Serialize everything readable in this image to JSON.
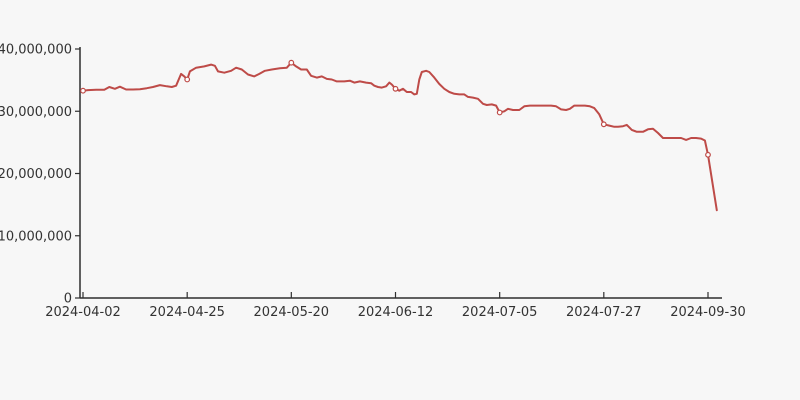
{
  "chart_data": {
    "type": "line",
    "title": "",
    "background_color": "#f7f7f7",
    "axis_color": "#2f2f2f",
    "label_color": "#333333",
    "line_color": "#be4b48",
    "marker_fill": "#ffffff",
    "grid": "off",
    "legend": "none",
    "ylim": [
      0,
      40000000
    ],
    "y_ticks": [
      {
        "v": 0,
        "label": "0"
      },
      {
        "v": 10000000,
        "label": "10,000,000"
      },
      {
        "v": 20000000,
        "label": "20,000,000"
      },
      {
        "v": 30000000,
        "label": "30,000,000"
      },
      {
        "v": 40000000,
        "label": "40,000,000"
      }
    ],
    "x_ticks": [
      {
        "f": 0.0,
        "label": "2024-04-02"
      },
      {
        "f": 0.1667,
        "label": "2024-04-25"
      },
      {
        "f": 0.3333,
        "label": "2024-05-20"
      },
      {
        "f": 0.5,
        "label": "2024-06-12"
      },
      {
        "f": 0.6667,
        "label": "2024-07-05"
      },
      {
        "f": 0.8333,
        "label": "2024-07-27"
      },
      {
        "f": 1.0,
        "label": "2024-09-30"
      }
    ],
    "marked_points": [
      {
        "date": "2024-04-02",
        "f": 0.0,
        "value": 33300000
      },
      {
        "date": "2024-04-25",
        "f": 0.1667,
        "value": 35100000
      },
      {
        "date": "2024-05-20",
        "f": 0.3333,
        "value": 37800000
      },
      {
        "date": "2024-06-12",
        "f": 0.5,
        "value": 33600000
      },
      {
        "date": "2024-07-05",
        "f": 0.6667,
        "value": 29800000
      },
      {
        "date": "2024-07-27",
        "f": 0.8333,
        "value": 27900000
      },
      {
        "date": "2024-09-30",
        "f": 1.0,
        "value": 23000000
      }
    ],
    "points": [
      [
        0.0,
        33300000
      ],
      [
        0.008,
        33400000
      ],
      [
        0.021,
        33450000
      ],
      [
        0.034,
        33450000
      ],
      [
        0.042,
        33900000
      ],
      [
        0.051,
        33600000
      ],
      [
        0.059,
        33950000
      ],
      [
        0.069,
        33500000
      ],
      [
        0.08,
        33500000
      ],
      [
        0.091,
        33550000
      ],
      [
        0.102,
        33700000
      ],
      [
        0.112,
        33900000
      ],
      [
        0.123,
        34200000
      ],
      [
        0.134,
        34000000
      ],
      [
        0.142,
        33900000
      ],
      [
        0.149,
        34100000
      ],
      [
        0.157,
        36000000
      ],
      [
        0.162,
        35600000
      ],
      [
        0.1667,
        35100000
      ],
      [
        0.171,
        36400000
      ],
      [
        0.181,
        37000000
      ],
      [
        0.194,
        37200000
      ],
      [
        0.205,
        37500000
      ],
      [
        0.211,
        37300000
      ],
      [
        0.216,
        36400000
      ],
      [
        0.226,
        36200000
      ],
      [
        0.237,
        36500000
      ],
      [
        0.245,
        37000000
      ],
      [
        0.254,
        36700000
      ],
      [
        0.264,
        35900000
      ],
      [
        0.274,
        35600000
      ],
      [
        0.282,
        36000000
      ],
      [
        0.291,
        36500000
      ],
      [
        0.302,
        36700000
      ],
      [
        0.315,
        36900000
      ],
      [
        0.326,
        37000000
      ],
      [
        0.3333,
        37800000
      ],
      [
        0.341,
        37200000
      ],
      [
        0.349,
        36700000
      ],
      [
        0.358,
        36700000
      ],
      [
        0.365,
        35700000
      ],
      [
        0.374,
        35400000
      ],
      [
        0.382,
        35600000
      ],
      [
        0.39,
        35200000
      ],
      [
        0.398,
        35100000
      ],
      [
        0.406,
        34800000
      ],
      [
        0.418,
        34800000
      ],
      [
        0.427,
        34900000
      ],
      [
        0.434,
        34600000
      ],
      [
        0.443,
        34800000
      ],
      [
        0.453,
        34600000
      ],
      [
        0.461,
        34500000
      ],
      [
        0.466,
        34100000
      ],
      [
        0.472,
        33900000
      ],
      [
        0.478,
        33800000
      ],
      [
        0.485,
        34000000
      ],
      [
        0.49,
        34600000
      ],
      [
        0.494,
        34300000
      ],
      [
        0.5,
        33600000
      ],
      [
        0.506,
        33300000
      ],
      [
        0.512,
        33600000
      ],
      [
        0.518,
        33100000
      ],
      [
        0.525,
        33100000
      ],
      [
        0.53,
        32700000
      ],
      [
        0.534,
        32800000
      ],
      [
        0.538,
        35100000
      ],
      [
        0.542,
        36300000
      ],
      [
        0.549,
        36500000
      ],
      [
        0.554,
        36300000
      ],
      [
        0.562,
        35400000
      ],
      [
        0.57,
        34400000
      ],
      [
        0.578,
        33600000
      ],
      [
        0.586,
        33100000
      ],
      [
        0.594,
        32800000
      ],
      [
        0.602,
        32700000
      ],
      [
        0.61,
        32700000
      ],
      [
        0.616,
        32300000
      ],
      [
        0.624,
        32200000
      ],
      [
        0.632,
        32000000
      ],
      [
        0.64,
        31200000
      ],
      [
        0.646,
        31000000
      ],
      [
        0.654,
        31100000
      ],
      [
        0.661,
        30900000
      ],
      [
        0.6667,
        29800000
      ],
      [
        0.674,
        30000000
      ],
      [
        0.68,
        30400000
      ],
      [
        0.688,
        30200000
      ],
      [
        0.698,
        30200000
      ],
      [
        0.706,
        30800000
      ],
      [
        0.715,
        30900000
      ],
      [
        0.726,
        30900000
      ],
      [
        0.739,
        30900000
      ],
      [
        0.749,
        30900000
      ],
      [
        0.757,
        30800000
      ],
      [
        0.765,
        30300000
      ],
      [
        0.773,
        30200000
      ],
      [
        0.779,
        30400000
      ],
      [
        0.786,
        30900000
      ],
      [
        0.795,
        30900000
      ],
      [
        0.803,
        30900000
      ],
      [
        0.811,
        30800000
      ],
      [
        0.818,
        30500000
      ],
      [
        0.826,
        29500000
      ],
      [
        0.8333,
        27900000
      ],
      [
        0.842,
        27700000
      ],
      [
        0.85,
        27500000
      ],
      [
        0.856,
        27500000
      ],
      [
        0.864,
        27600000
      ],
      [
        0.87,
        27800000
      ],
      [
        0.878,
        27000000
      ],
      [
        0.886,
        26700000
      ],
      [
        0.896,
        26700000
      ],
      [
        0.904,
        27100000
      ],
      [
        0.912,
        27200000
      ],
      [
        0.92,
        26500000
      ],
      [
        0.928,
        25700000
      ],
      [
        0.938,
        25700000
      ],
      [
        0.947,
        25700000
      ],
      [
        0.957,
        25700000
      ],
      [
        0.965,
        25400000
      ],
      [
        0.973,
        25700000
      ],
      [
        0.981,
        25700000
      ],
      [
        0.989,
        25600000
      ],
      [
        0.995,
        25300000
      ],
      [
        1.0,
        23000000
      ],
      [
        1.014,
        14100000
      ]
    ]
  }
}
